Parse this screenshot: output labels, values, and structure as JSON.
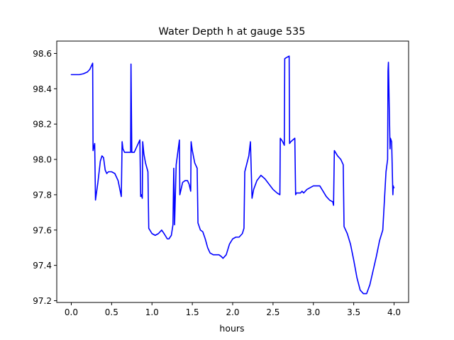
{
  "chart_data": {
    "type": "line",
    "title": "Water Depth h at gauge 535",
    "xlabel": "hours",
    "ylabel": "",
    "xlim": [
      -0.18,
      4.18
    ],
    "ylim": [
      97.19,
      98.67
    ],
    "xticks": [
      0.0,
      0.5,
      1.0,
      1.5,
      2.0,
      2.5,
      3.0,
      3.5,
      4.0
    ],
    "xtick_labels": [
      "0.0",
      "0.5",
      "1.0",
      "1.5",
      "2.0",
      "2.5",
      "3.0",
      "3.5",
      "4.0"
    ],
    "yticks": [
      97.2,
      97.4,
      97.6,
      97.8,
      98.0,
      98.2,
      98.4,
      98.6
    ],
    "ytick_labels": [
      "97.2",
      "97.4",
      "97.6",
      "97.8",
      "98.0",
      "98.2",
      "98.4",
      "98.6"
    ],
    "grid": false,
    "series": [
      {
        "color": "#0000ff",
        "x": [
          0.0,
          0.1,
          0.15,
          0.2,
          0.23,
          0.25,
          0.265,
          0.27,
          0.28,
          0.29,
          0.3,
          0.33,
          0.36,
          0.38,
          0.4,
          0.42,
          0.44,
          0.46,
          0.5,
          0.54,
          0.58,
          0.62,
          0.63,
          0.64,
          0.66,
          0.7,
          0.735,
          0.74,
          0.75,
          0.78,
          0.82,
          0.85,
          0.86,
          0.87,
          0.88,
          0.885,
          0.9,
          0.92,
          0.95,
          0.96,
          1.0,
          1.04,
          1.08,
          1.12,
          1.15,
          1.19,
          1.21,
          1.24,
          1.26,
          1.27,
          1.28,
          1.3,
          1.34,
          1.345,
          1.36,
          1.38,
          1.41,
          1.44,
          1.46,
          1.48,
          1.485,
          1.5,
          1.53,
          1.56,
          1.57,
          1.6,
          1.63,
          1.66,
          1.69,
          1.72,
          1.76,
          1.8,
          1.83,
          1.86,
          1.88,
          1.92,
          1.96,
          2.0,
          2.04,
          2.08,
          2.12,
          2.14,
          2.15,
          2.2,
          2.22,
          2.24,
          2.26,
          2.3,
          2.35,
          2.4,
          2.45,
          2.5,
          2.55,
          2.585,
          2.59,
          2.62,
          2.64,
          2.645,
          2.66,
          2.7,
          2.705,
          2.72,
          2.77,
          2.78,
          2.79,
          2.82,
          2.84,
          2.86,
          2.88,
          2.92,
          2.96,
          3.0,
          3.04,
          3.08,
          3.12,
          3.16,
          3.2,
          3.24,
          3.25,
          3.26,
          3.3,
          3.34,
          3.37,
          3.38,
          3.42,
          3.46,
          3.5,
          3.54,
          3.58,
          3.62,
          3.66,
          3.7,
          3.74,
          3.78,
          3.82,
          3.86,
          3.9,
          3.92,
          3.925,
          3.93,
          3.95,
          3.955,
          3.97,
          3.985,
          3.99,
          3.995,
          4.0
        ],
        "y": [
          98.48,
          98.48,
          98.485,
          98.495,
          98.51,
          98.53,
          98.545,
          98.05,
          98.07,
          98.09,
          97.77,
          97.87,
          97.99,
          98.02,
          98.01,
          97.94,
          97.92,
          97.93,
          97.93,
          97.92,
          97.88,
          97.79,
          98.1,
          98.06,
          98.04,
          98.04,
          98.04,
          98.54,
          98.04,
          98.04,
          98.08,
          98.11,
          97.79,
          97.8,
          97.78,
          98.1,
          98.03,
          97.98,
          97.93,
          97.61,
          97.58,
          97.57,
          97.58,
          97.6,
          97.58,
          97.55,
          97.55,
          97.57,
          97.63,
          97.95,
          97.63,
          97.97,
          98.11,
          97.8,
          97.83,
          97.87,
          97.88,
          97.88,
          97.86,
          97.82,
          98.1,
          98.05,
          97.98,
          97.95,
          97.64,
          97.6,
          97.59,
          97.55,
          97.5,
          97.47,
          97.46,
          97.46,
          97.46,
          97.45,
          97.44,
          97.46,
          97.52,
          97.55,
          97.56,
          97.56,
          97.58,
          97.61,
          97.93,
          98.02,
          98.1,
          97.78,
          97.83,
          97.88,
          97.91,
          97.89,
          97.86,
          97.83,
          97.81,
          97.8,
          98.12,
          98.1,
          98.08,
          98.57,
          98.575,
          98.585,
          98.09,
          98.1,
          98.12,
          97.8,
          97.81,
          97.81,
          97.81,
          97.82,
          97.81,
          97.83,
          97.84,
          97.85,
          97.85,
          97.85,
          97.82,
          97.79,
          97.77,
          97.76,
          97.74,
          98.05,
          98.02,
          98.0,
          97.97,
          97.62,
          97.58,
          97.52,
          97.43,
          97.33,
          97.26,
          97.24,
          97.24,
          97.29,
          97.37,
          97.45,
          97.54,
          97.6,
          97.93,
          98.0,
          98.5,
          98.55,
          98.06,
          98.12,
          98.1,
          97.8,
          97.85,
          97.84,
          97.84
        ]
      }
    ]
  }
}
